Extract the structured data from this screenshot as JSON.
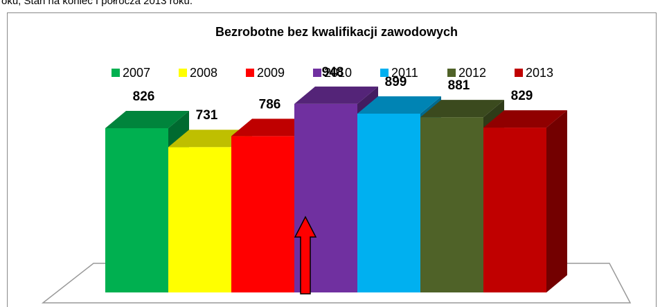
{
  "caption": "oku, Stan na koniec I półrocza 2013 roku.",
  "chart_data": {
    "type": "bar3d",
    "title": "Bezrobotne bez kwalifikacji zawodowych",
    "series": [
      {
        "name": "2007",
        "color": "#00b050",
        "values": [
          826
        ]
      },
      {
        "name": "2008",
        "color": "#ffff00",
        "values": [
          731
        ]
      },
      {
        "name": "2009",
        "color": "#ff0000",
        "values": [
          786
        ]
      },
      {
        "name": "2010",
        "color": "#7030a0",
        "values": [
          948
        ]
      },
      {
        "name": "2011",
        "color": "#00b0f0",
        "values": [
          899
        ]
      },
      {
        "name": "2012",
        "color": "#4f6228",
        "values": [
          881
        ]
      },
      {
        "name": "2013",
        "color": "#c00000",
        "values": [
          829
        ]
      }
    ],
    "legend": "top"
  }
}
